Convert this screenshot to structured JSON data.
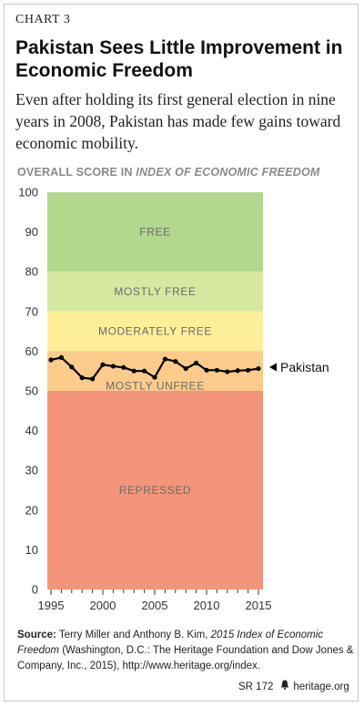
{
  "header": {
    "chart_label": "CHART 3",
    "title": "Pakistan Sees Little Improvement in Economic Freedom",
    "subtitle": "Even after holding its first general election in nine years in 2008, Pakistan has made few gains toward economic mobility.",
    "axis_heading_prefix": "OVERALL SCORE IN ",
    "axis_heading_italic": "INDEX OF ECONOMIC FREEDOM"
  },
  "colors": {
    "free": "#b1d88d",
    "mostly_free": "#d7e8a0",
    "moderately_free": "#fdee9a",
    "mostly_unfree": "#fbcb8c",
    "repressed": "#f2957a",
    "band_text": "#6b6b6b",
    "line": "#000000"
  },
  "chart_data": {
    "type": "line",
    "title": "OVERALL SCORE IN INDEX OF ECONOMIC FREEDOM",
    "xlabel": "",
    "ylabel": "",
    "xlim": [
      1995,
      2015
    ],
    "ylim": [
      0,
      100
    ],
    "y_ticks": [
      "0",
      "10",
      "20",
      "30",
      "40",
      "50",
      "60",
      "70",
      "80",
      "90",
      "100"
    ],
    "x_ticks": [
      "1995",
      "2000",
      "2005",
      "2010",
      "2015"
    ],
    "grid": false,
    "bands": [
      {
        "label": "FREE",
        "from": 80,
        "to": 100
      },
      {
        "label": "MOSTLY FREE",
        "from": 70,
        "to": 80
      },
      {
        "label": "MODERATELY FREE",
        "from": 60,
        "to": 70
      },
      {
        "label": "MOSTLY UNFREE",
        "from": 50,
        "to": 60
      },
      {
        "label": "REPRESSED",
        "from": 0,
        "to": 50
      }
    ],
    "series": [
      {
        "name": "Pakistan",
        "x": [
          1995,
          1996,
          1997,
          1998,
          1999,
          2000,
          2001,
          2002,
          2003,
          2004,
          2005,
          2006,
          2007,
          2008,
          2009,
          2010,
          2011,
          2012,
          2013,
          2014,
          2015
        ],
        "values": [
          57.8,
          58.4,
          56.0,
          53.3,
          53.0,
          56.6,
          56.2,
          55.9,
          55.0,
          55.0,
          53.4,
          58.0,
          57.4,
          55.6,
          57.0,
          55.2,
          55.2,
          54.8,
          55.1,
          55.2,
          55.6
        ]
      }
    ]
  },
  "source": {
    "label": "Source:",
    "text_before_italic": " Terry Miller and Anthony B. Kim, ",
    "italic": "2015 Index of Economic Freedom",
    "text_after_italic": " (Washington, D.C.: The Heritage Foundation and Dow Jones & Company, Inc., 2015), http://www.heritage.org/index."
  },
  "footer": {
    "report_code": "SR 172",
    "bell_icon": "liberty-bell-icon",
    "site": "heritage.org"
  }
}
